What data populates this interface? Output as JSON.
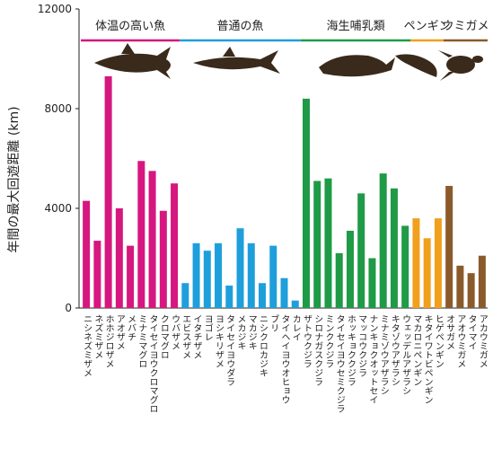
{
  "chart_data": {
    "type": "bar",
    "y_label": "年間の最大回遊距離 (km)",
    "ylim": [
      0,
      12000
    ],
    "yticks": [
      0,
      4000,
      8000,
      12000
    ],
    "groups": [
      {
        "name": "体温の高い魚",
        "color": "#d6177f",
        "categories": [
          "ニシネズミザメ",
          "ネズミザメ",
          "ホホジロザメ",
          "アオザメ",
          "メバチ",
          "ミナミマグロ",
          "タイセイヨウクロマグロ",
          "クロマグロ",
          "ウバザメ"
        ],
        "values": [
          4300,
          2700,
          9300,
          4000,
          2500,
          5900,
          5500,
          3900,
          5000
        ]
      },
      {
        "name": "普通の魚",
        "color": "#1e9fdc",
        "categories": [
          "エビスザメ",
          "イタチザメ",
          "ヨゴレ",
          "ヨシキリザメ",
          "タイセイヨウダラ",
          "メカジキ",
          "マカジキ",
          "ニシクロカジキ",
          "ブリ",
          "タイヘイヨウオヒョウ",
          "カレイ"
        ],
        "values": [
          1000,
          2600,
          2300,
          2600,
          900,
          3200,
          2600,
          1000,
          2500,
          1200,
          300
        ]
      },
      {
        "name": "海生哺乳類",
        "color": "#1f9a47",
        "categories": [
          "ザトウクジラ",
          "シロナガスクジラ",
          "ミンククジラ",
          "タイセイヨウセミクジラ",
          "ホッキョククジラ",
          "マッコウクジラ",
          "ナンキョクオットセイ",
          "ミナミゾウアザラシ",
          "キタゾウアザラシ",
          "ウェッデルアザラシ"
        ],
        "values": [
          8400,
          5100,
          5200,
          2200,
          3100,
          4600,
          2000,
          5400,
          4800,
          3300
        ]
      },
      {
        "name": "ペンギン",
        "color": "#f0a01c",
        "categories": [
          "マカロニペンギン",
          "キタイワトビペンギン",
          "ヒゲペンギン"
        ],
        "values": [
          3600,
          2800,
          3600
        ]
      },
      {
        "name": "ウミガメ",
        "color": "#8b5a2b",
        "categories": [
          "オサガメ",
          "アオウミガメ",
          "タイマイ",
          "アカウミガメ"
        ],
        "values": [
          4900,
          1700,
          1400,
          2100
        ]
      }
    ]
  }
}
